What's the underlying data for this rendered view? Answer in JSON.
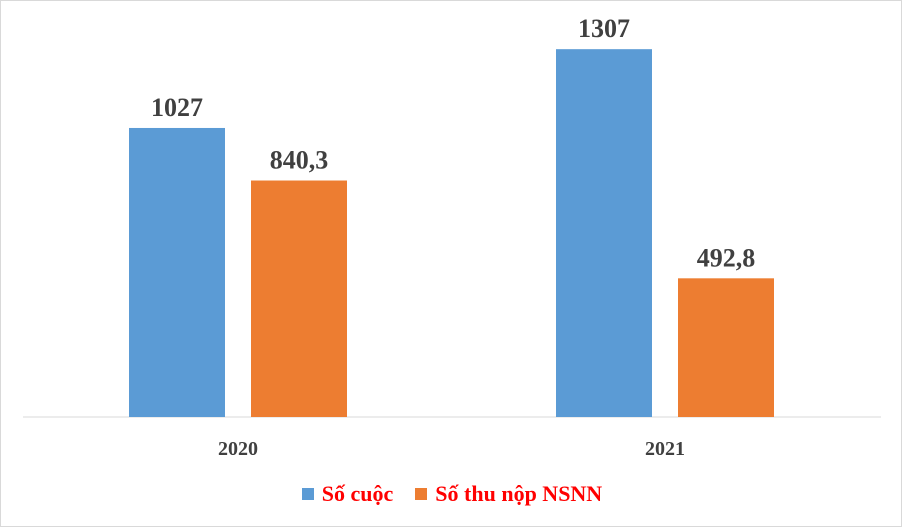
{
  "chart_data": {
    "type": "bar",
    "categories": [
      "2020",
      "2021"
    ],
    "series": [
      {
        "name": "Số cuộc",
        "values": [
          1027,
          1307
        ],
        "labels": [
          "1027",
          "1307"
        ],
        "color": "#5b9bd5"
      },
      {
        "name": "Số thu nộp NSNN",
        "values": [
          840.3,
          492.8
        ],
        "labels": [
          "840,3",
          "492,8"
        ],
        "color": "#ed7d31"
      }
    ],
    "title": "",
    "xlabel": "",
    "ylabel": "",
    "ylim": [
      0,
      1400
    ],
    "grid": false,
    "legend_position": "bottom"
  }
}
